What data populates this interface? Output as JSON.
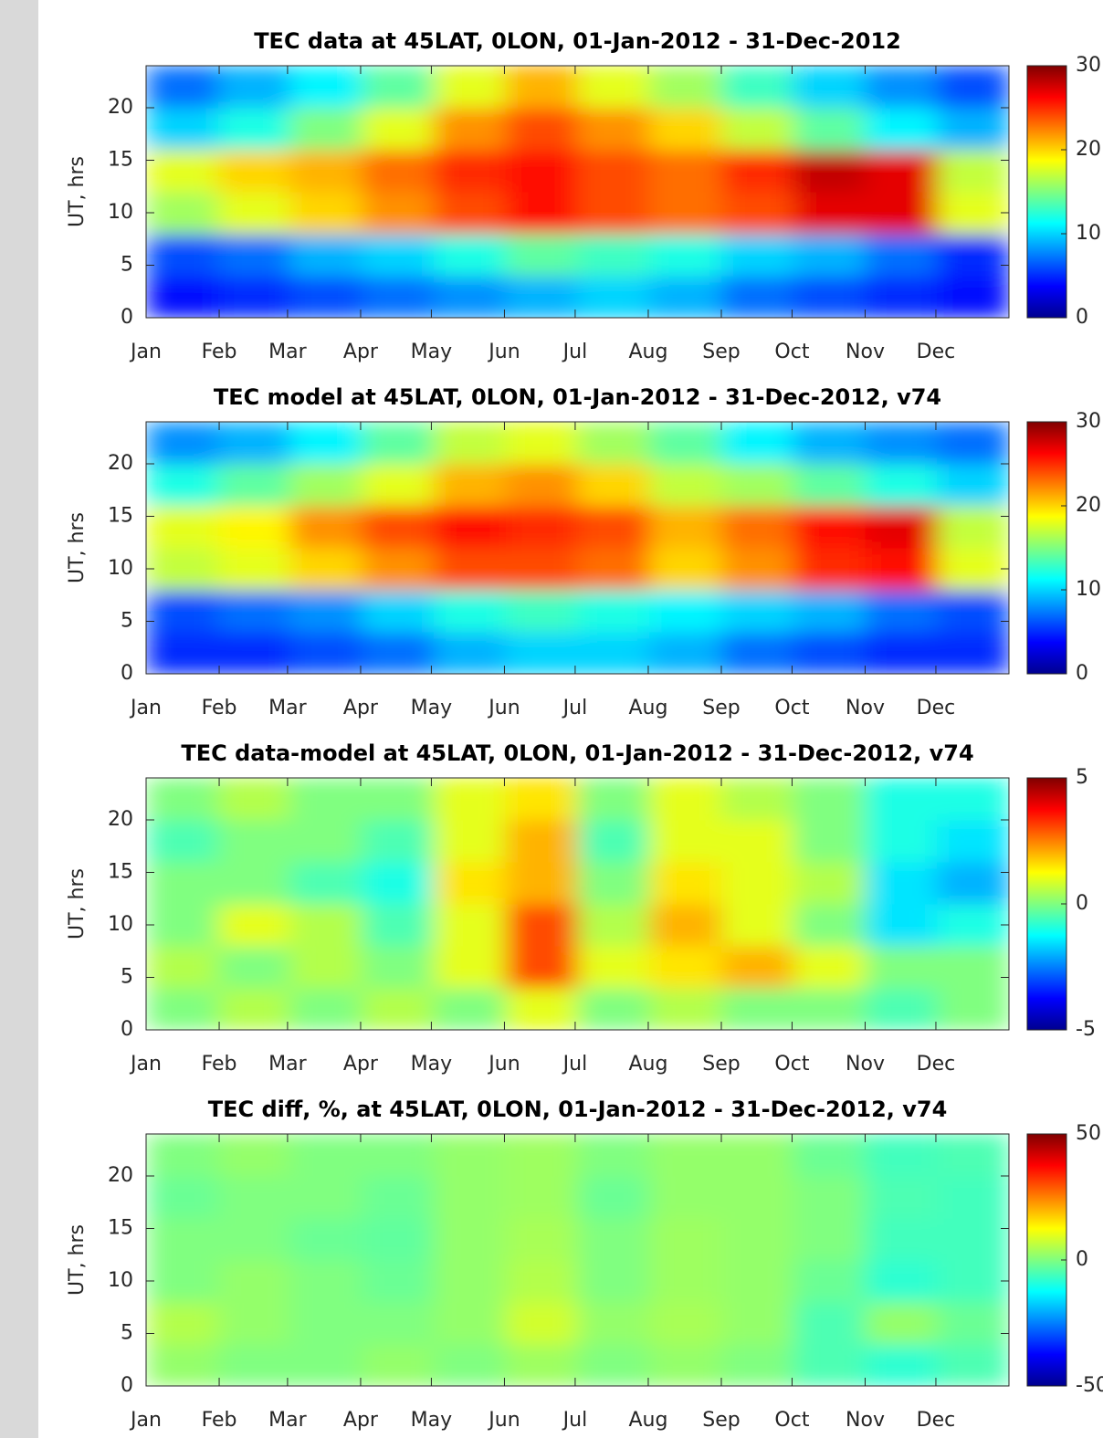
{
  "chart_data": [
    {
      "type": "heatmap",
      "title": "TEC data at 45LAT, 0LON, 01-Jan-2012 - 31-Dec-2012",
      "ylabel": "UT, hrs",
      "colormap": "jet",
      "xlim": [
        0,
        366
      ],
      "xticks": [
        {
          "value": 0,
          "label": "Jan"
        },
        {
          "value": 31,
          "label": "Feb"
        },
        {
          "value": 60,
          "label": "Mar"
        },
        {
          "value": 91,
          "label": "Apr"
        },
        {
          "value": 121,
          "label": "May"
        },
        {
          "value": 152,
          "label": "Jun"
        },
        {
          "value": 182,
          "label": "Jul"
        },
        {
          "value": 213,
          "label": "Aug"
        },
        {
          "value": 244,
          "label": "Sep"
        },
        {
          "value": 274,
          "label": "Oct"
        },
        {
          "value": 305,
          "label": "Nov"
        },
        {
          "value": 335,
          "label": "Dec"
        }
      ],
      "ylim": [
        0,
        24
      ],
      "yticks": [
        0,
        5,
        10,
        15,
        20
      ],
      "clim": [
        0,
        30
      ],
      "cticks": [
        0,
        10,
        20,
        30
      ],
      "z": [
        [
          4,
          5,
          6,
          7,
          8,
          9,
          10,
          9,
          7,
          6,
          5,
          4
        ],
        [
          6,
          7,
          9,
          10,
          12,
          14,
          13,
          12,
          10,
          9,
          7,
          5
        ],
        [
          16,
          18,
          20,
          22,
          24,
          26,
          24,
          23,
          24,
          27,
          27,
          18
        ],
        [
          18,
          20,
          21,
          23,
          25,
          26,
          24,
          23,
          25,
          28,
          27,
          17
        ],
        [
          10,
          12,
          15,
          18,
          22,
          24,
          22,
          20,
          17,
          14,
          11,
          9
        ],
        [
          7,
          9,
          11,
          14,
          18,
          21,
          18,
          16,
          13,
          10,
          8,
          6
        ]
      ]
    },
    {
      "type": "heatmap",
      "title": "TEC model at 45LAT, 0LON, 01-Jan-2012 - 31-Dec-2012, v74",
      "ylabel": "UT, hrs",
      "colormap": "jet",
      "xlim": [
        0,
        366
      ],
      "xticks": [
        {
          "value": 0,
          "label": "Jan"
        },
        {
          "value": 31,
          "label": "Feb"
        },
        {
          "value": 60,
          "label": "Mar"
        },
        {
          "value": 91,
          "label": "Apr"
        },
        {
          "value": 121,
          "label": "May"
        },
        {
          "value": 152,
          "label": "Jun"
        },
        {
          "value": 182,
          "label": "Jul"
        },
        {
          "value": 213,
          "label": "Aug"
        },
        {
          "value": 244,
          "label": "Sep"
        },
        {
          "value": 274,
          "label": "Oct"
        },
        {
          "value": 305,
          "label": "Nov"
        },
        {
          "value": 335,
          "label": "Dec"
        }
      ],
      "ylim": [
        0,
        24
      ],
      "yticks": [
        0,
        5,
        10,
        15,
        20
      ],
      "clim": [
        0,
        30
      ],
      "cticks": [
        0,
        10,
        20,
        30
      ],
      "z": [
        [
          5,
          5,
          6,
          7,
          9,
          10,
          10,
          9,
          7,
          6,
          5,
          5
        ],
        [
          6,
          7,
          8,
          10,
          12,
          13,
          12,
          11,
          10,
          9,
          7,
          6
        ],
        [
          17,
          18,
          20,
          22,
          24,
          24,
          23,
          20,
          22,
          25,
          26,
          18
        ],
        [
          18,
          19,
          22,
          24,
          26,
          25,
          24,
          21,
          23,
          26,
          27,
          17
        ],
        [
          12,
          14,
          16,
          18,
          21,
          22,
          20,
          17,
          16,
          14,
          12,
          10
        ],
        [
          8,
          9,
          11,
          14,
          17,
          18,
          16,
          14,
          11,
          9,
          8,
          7
        ]
      ]
    },
    {
      "type": "heatmap",
      "title": "TEC data-model at 45LAT, 0LON, 01-Jan-2012 - 31-Dec-2012, v74",
      "ylabel": "UT, hrs",
      "colormap": "jet",
      "xlim": [
        0,
        366
      ],
      "xticks": [
        {
          "value": 0,
          "label": "Jan"
        },
        {
          "value": 31,
          "label": "Feb"
        },
        {
          "value": 60,
          "label": "Mar"
        },
        {
          "value": 91,
          "label": "Apr"
        },
        {
          "value": 121,
          "label": "May"
        },
        {
          "value": 152,
          "label": "Jun"
        },
        {
          "value": 182,
          "label": "Jul"
        },
        {
          "value": 213,
          "label": "Aug"
        },
        {
          "value": 244,
          "label": "Sep"
        },
        {
          "value": 274,
          "label": "Oct"
        },
        {
          "value": 305,
          "label": "Nov"
        },
        {
          "value": 335,
          "label": "Dec"
        }
      ],
      "ylim": [
        0,
        24
      ],
      "yticks": [
        0,
        5,
        10,
        15,
        20
      ],
      "clim": [
        -5,
        5
      ],
      "cticks": [
        -5,
        0,
        5
      ],
      "z": [
        [
          0,
          0.5,
          0,
          0.5,
          0,
          1,
          0,
          0.5,
          0,
          0,
          -0.5,
          0
        ],
        [
          0.5,
          0,
          0.5,
          0,
          1,
          3,
          1,
          1.5,
          2,
          1,
          0,
          0
        ],
        [
          0,
          1,
          0.5,
          -0.5,
          1,
          3,
          0.5,
          2,
          1,
          0,
          -1.5,
          -1
        ],
        [
          0,
          0,
          -0.5,
          -1,
          1.5,
          2,
          0,
          1.5,
          1,
          0.5,
          -1.5,
          -2
        ],
        [
          -0.5,
          0,
          0,
          -0.5,
          1,
          2,
          -0.5,
          1,
          1,
          0,
          -1,
          -1.5
        ],
        [
          0,
          0.5,
          0,
          0,
          1,
          1.5,
          0,
          1,
          0.5,
          0,
          -1,
          -1
        ]
      ]
    },
    {
      "type": "heatmap",
      "title": "TEC diff, %, at 45LAT, 0LON, 01-Jan-2012 - 31-Dec-2012, v74",
      "ylabel": "UT, hrs",
      "colormap": "jet",
      "xlim": [
        0,
        366
      ],
      "xticks": [
        {
          "value": 0,
          "label": "Jan"
        },
        {
          "value": 31,
          "label": "Feb"
        },
        {
          "value": 60,
          "label": "Mar"
        },
        {
          "value": 91,
          "label": "Apr"
        },
        {
          "value": 121,
          "label": "May"
        },
        {
          "value": 152,
          "label": "Jun"
        },
        {
          "value": 182,
          "label": "Jul"
        },
        {
          "value": 213,
          "label": "Aug"
        },
        {
          "value": 244,
          "label": "Sep"
        },
        {
          "value": 274,
          "label": "Oct"
        },
        {
          "value": 305,
          "label": "Nov"
        },
        {
          "value": 335,
          "label": "Dec"
        }
      ],
      "ylim": [
        0,
        24
      ],
      "yticks": [
        0,
        5,
        10,
        15,
        20
      ],
      "clim": [
        -50,
        50
      ],
      "cticks": [
        -50,
        0,
        50
      ],
      "z": [
        [
          2,
          0,
          0,
          2,
          0,
          3,
          0,
          2,
          0,
          -5,
          -8,
          -5
        ],
        [
          5,
          2,
          0,
          0,
          2,
          8,
          2,
          4,
          2,
          -5,
          2,
          -2
        ],
        [
          0,
          2,
          0,
          -2,
          2,
          5,
          0,
          3,
          2,
          -2,
          -8,
          -6
        ],
        [
          0,
          0,
          -2,
          -3,
          2,
          4,
          0,
          3,
          2,
          0,
          -6,
          -6
        ],
        [
          -2,
          0,
          0,
          -2,
          2,
          3,
          -2,
          2,
          2,
          0,
          -5,
          -6
        ],
        [
          0,
          2,
          0,
          0,
          2,
          3,
          0,
          2,
          2,
          -2,
          -6,
          -5
        ]
      ]
    }
  ]
}
